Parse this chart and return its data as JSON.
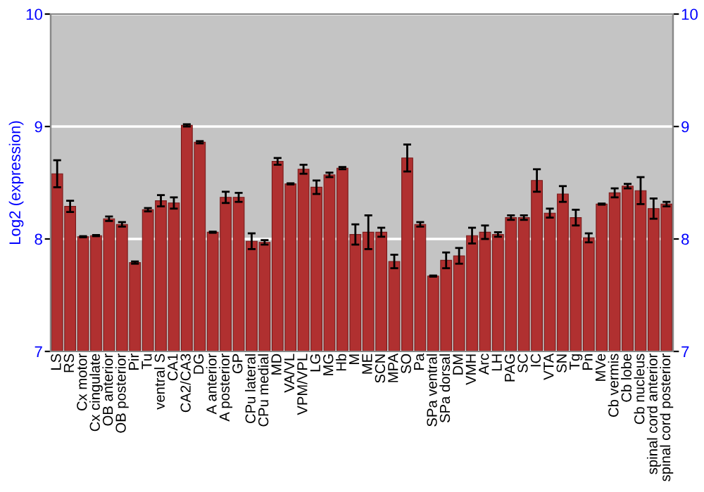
{
  "chart_data": {
    "type": "bar",
    "ylabel": "Log2 (expression)",
    "categories": [
      "LS",
      "RS",
      "Cx motor",
      "Cx cingulate",
      "OB anterior",
      "OB posterior",
      "Pir",
      "Tu",
      "ventral S",
      "CA1",
      "CA2/CA3",
      "DG",
      "A anterior",
      "A posterior",
      "GP",
      "CPu lateral",
      "CPu medial",
      "MD",
      "VA/VL",
      "VPM/VPL",
      "LG",
      "MG",
      "Hb",
      "M",
      "ME",
      "SCN",
      "MPA",
      "SO",
      "Pa",
      "SPa ventral",
      "SPa dorsal",
      "DM",
      "VMH",
      "Arc",
      "LH",
      "PAG",
      "SC",
      "IC",
      "VTA",
      "SN",
      "Tg",
      "Pn",
      "MVe",
      "Cb vermis",
      "Cb lobe",
      "Cb nucleus",
      "spinal cord anterior",
      "spinal cord posterior"
    ],
    "values": [
      8.58,
      8.29,
      8.02,
      8.03,
      8.18,
      8.13,
      7.79,
      8.26,
      8.34,
      8.32,
      9.01,
      8.86,
      8.06,
      8.37,
      8.37,
      7.98,
      7.97,
      8.69,
      8.49,
      8.62,
      8.46,
      8.57,
      8.63,
      8.04,
      8.06,
      8.06,
      7.8,
      8.72,
      8.13,
      7.67,
      7.81,
      7.85,
      8.03,
      8.06,
      8.04,
      8.19,
      8.19,
      8.52,
      8.23,
      8.4,
      8.19,
      8.01,
      8.31,
      8.41,
      8.47,
      8.43,
      8.27,
      8.31
    ],
    "errors": [
      0.12,
      0.05,
      0.005,
      0.005,
      0.02,
      0.02,
      0.01,
      0.015,
      0.05,
      0.05,
      0.01,
      0.01,
      0.005,
      0.05,
      0.04,
      0.07,
      0.02,
      0.03,
      0.005,
      0.04,
      0.06,
      0.02,
      0.01,
      0.09,
      0.15,
      0.04,
      0.06,
      0.12,
      0.02,
      0.005,
      0.07,
      0.07,
      0.07,
      0.06,
      0.02,
      0.02,
      0.02,
      0.1,
      0.04,
      0.07,
      0.07,
      0.04,
      0.005,
      0.04,
      0.02,
      0.12,
      0.09,
      0.02
    ],
    "color": "#b03030",
    "ylim": [
      7,
      10
    ],
    "yticks": [
      7,
      8,
      9,
      10
    ],
    "y2lim": [
      7,
      10
    ],
    "y2ticks": [
      7,
      8,
      9,
      10
    ],
    "grid": "y"
  }
}
